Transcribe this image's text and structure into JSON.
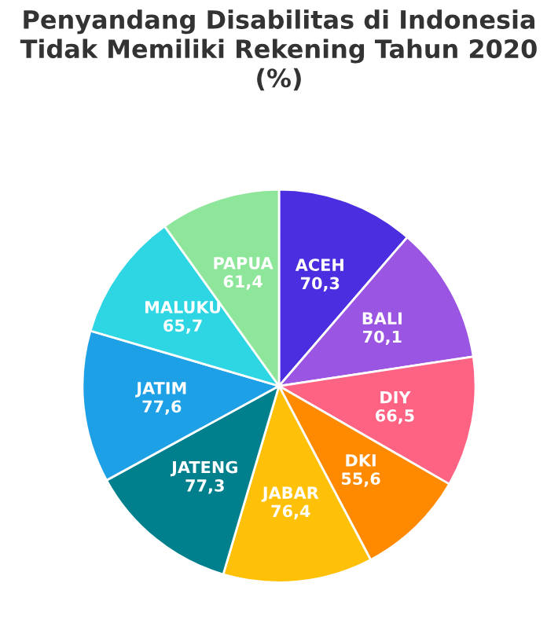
{
  "chart_data": {
    "type": "pie",
    "title": "Penyandang Disabilitas di Indonesia Tidak Memiliki Rekening Tahun 2020 (%)",
    "categories": [
      "ACEH",
      "BALI",
      "DIY",
      "DKI",
      "JABAR",
      "JATENG",
      "JATIM",
      "MALUKU",
      "PAPUA"
    ],
    "values": [
      70.3,
      70.1,
      66.5,
      55.6,
      76.4,
      77.3,
      77.6,
      65.7,
      61.4
    ],
    "colors": [
      "#4b2ee0",
      "#9a55e2",
      "#ff6384",
      "#ff8a00",
      "#ffc107",
      "#007f8c",
      "#1ea0e6",
      "#2ed6e3",
      "#8ee69a"
    ],
    "value_labels": [
      "70,3",
      "70,1",
      "66,5",
      "55,6",
      "76,4",
      "77,3",
      "77,6",
      "65,7",
      "61,4"
    ]
  }
}
